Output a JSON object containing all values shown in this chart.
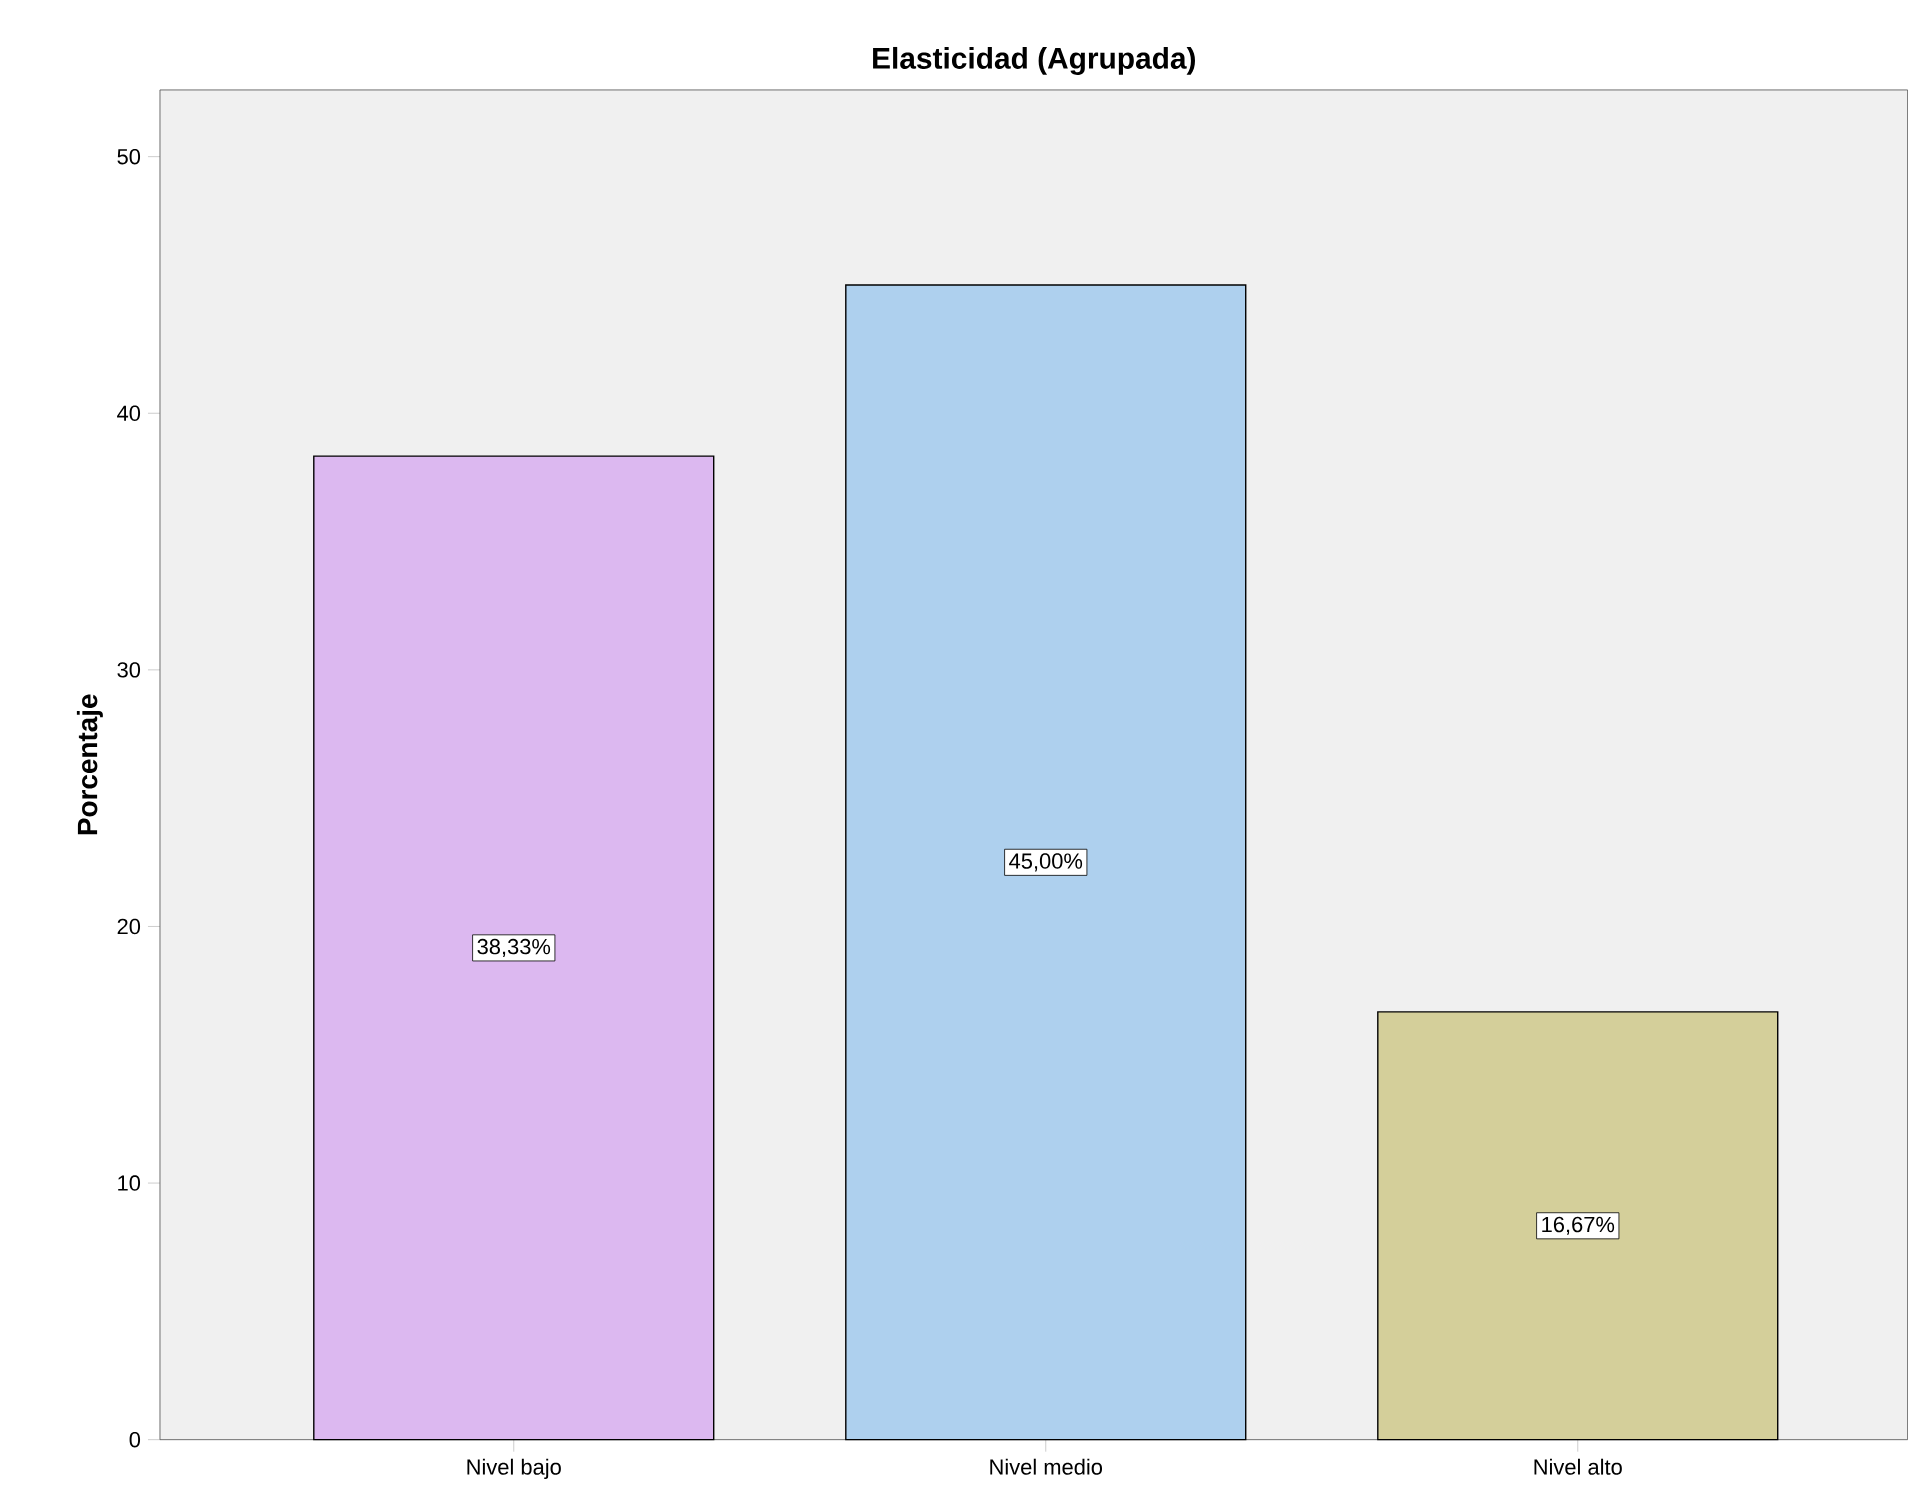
{
  "chart_data": {
    "type": "bar",
    "title": "Elasticidad (Agrupada)",
    "ylabel": "Porcentaje",
    "categories": [
      "Nivel bajo",
      "Nivel medio",
      "Nivel alto"
    ],
    "values": [
      38.33,
      45.0,
      16.67
    ],
    "colors": [
      "#dcb8f0",
      "#aed0ee",
      "#d4cf9a"
    ],
    "value_labels": [
      "38,33%",
      "45,00%",
      "16,67%"
    ],
    "ylim": [
      0,
      52.6
    ],
    "yticks": [
      0,
      10,
      20,
      30,
      40,
      50
    ]
  }
}
